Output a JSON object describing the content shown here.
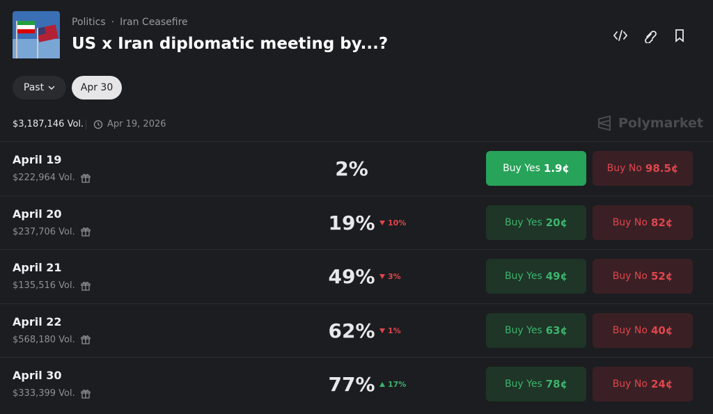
{
  "header": {
    "breadcrumb": [
      "Politics",
      "Iran Ceasefire"
    ],
    "separator": "·",
    "title": "US x Iran diplomatic meeting by...?"
  },
  "filters": {
    "past": "Past",
    "selected": "Apr 30"
  },
  "summary": {
    "volume": "$3,187,146 Vol.",
    "date": "Apr 19, 2026",
    "brand": "Polymarket"
  },
  "rows": [
    {
      "label": "April 19",
      "volume": "$222,964 Vol.",
      "percent": "2%",
      "yes_label": "Buy Yes",
      "yes_price": "1.9¢",
      "no_label": "Buy No",
      "no_price": "98.5¢",
      "highlighted": true
    },
    {
      "label": "April 20",
      "volume": "$237,706 Vol.",
      "percent": "19%",
      "change": "10%",
      "direction": "down",
      "yes_label": "Buy Yes",
      "yes_price": "20¢",
      "no_label": "Buy No",
      "no_price": "82¢"
    },
    {
      "label": "April 21",
      "volume": "$135,516 Vol.",
      "percent": "49%",
      "change": "3%",
      "direction": "down",
      "yes_label": "Buy Yes",
      "yes_price": "49¢",
      "no_label": "Buy No",
      "no_price": "52¢"
    },
    {
      "label": "April 22",
      "volume": "$568,180 Vol.",
      "percent": "62%",
      "change": "1%",
      "direction": "down",
      "yes_label": "Buy Yes",
      "yes_price": "63¢",
      "no_label": "Buy No",
      "no_price": "40¢"
    },
    {
      "label": "April 30",
      "volume": "$333,399 Vol.",
      "percent": "77%",
      "change": "17%",
      "direction": "up",
      "yes_label": "Buy Yes",
      "yes_price": "78¢",
      "no_label": "Buy No",
      "no_price": "24¢"
    }
  ]
}
